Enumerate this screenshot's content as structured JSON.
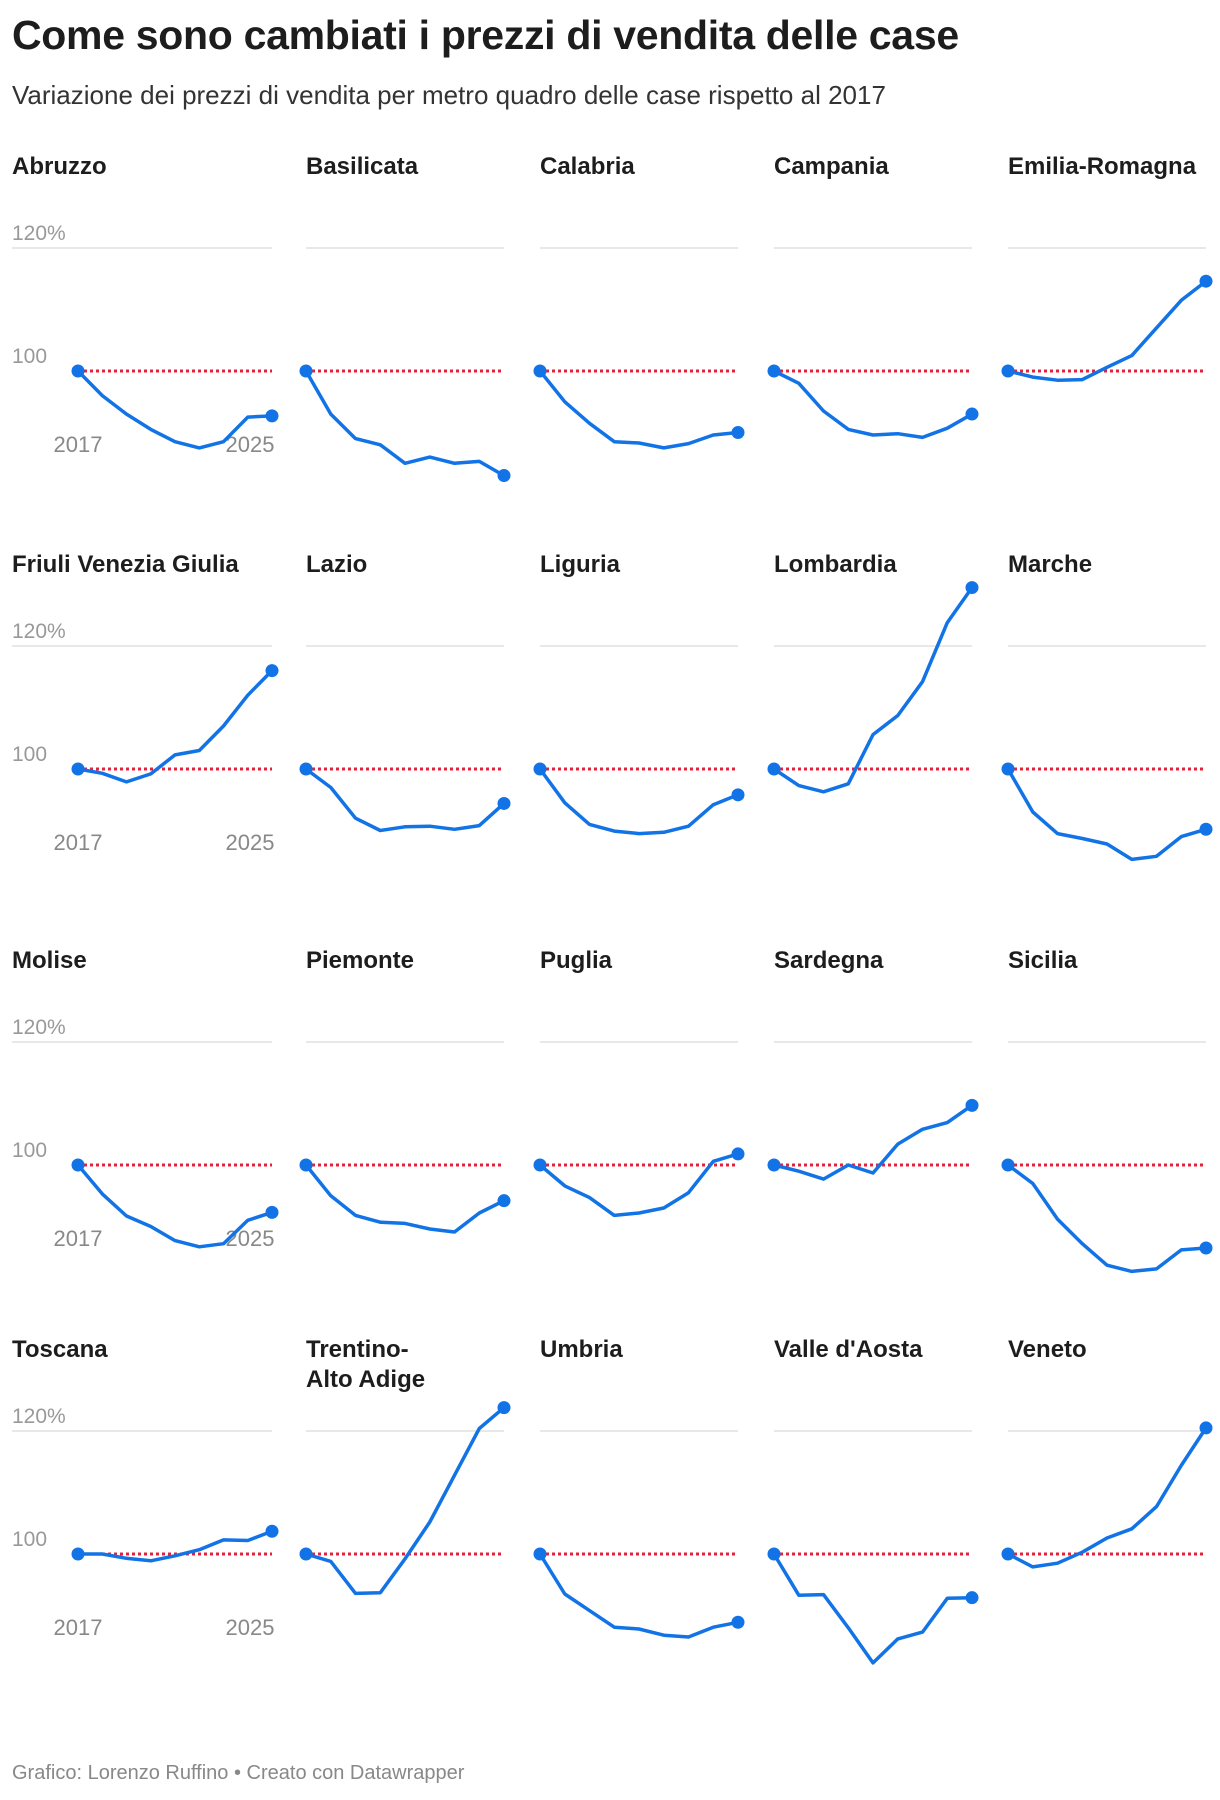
{
  "title": "Come sono cambiati i prezzi di vendita delle case",
  "subtitle": "Variazione dei prezzi di vendita per metro quadro delle case rispetto al 2017",
  "footer": {
    "credit": "Grafico: Lorenzo Ruffino",
    "separator": " • ",
    "tool": "Creato con Datawrapper"
  },
  "colors": {
    "line": "#1273e6",
    "baseline": "#e6203a",
    "grid": "#e0e0e0",
    "tick": "#999999",
    "axis_label": "#888888"
  },
  "chart_data": {
    "type": "line",
    "layout": "small-multiples",
    "columns": 5,
    "x": [
      2017,
      2018,
      2019,
      2020,
      2021,
      2022,
      2023,
      2024,
      2025
    ],
    "x_tick_labels": [
      "2017",
      "2025"
    ],
    "y_tick_labels": [
      "120%",
      "100"
    ],
    "y_ticks": [
      120,
      100
    ],
    "ylim": [
      78,
      132
    ],
    "baseline": 100,
    "grid": true,
    "legend": "none",
    "series": [
      {
        "name": "Abruzzo",
        "values": [
          100,
          96,
          93,
          90.5,
          88.5,
          87.5,
          88.5,
          92.5,
          92.7
        ]
      },
      {
        "name": "Basilicata",
        "values": [
          100,
          93,
          89,
          88,
          85,
          86,
          85,
          85.3,
          83
        ]
      },
      {
        "name": "Calabria",
        "values": [
          100,
          95,
          91.5,
          88.5,
          88.3,
          87.5,
          88.2,
          89.6,
          90
        ]
      },
      {
        "name": "Campania",
        "values": [
          100,
          98,
          93.5,
          90.5,
          89.6,
          89.8,
          89.2,
          90.7,
          93
        ]
      },
      {
        "name": "Emilia-Romagna",
        "values": [
          100,
          99,
          98.5,
          98.6,
          100.6,
          102.5,
          107,
          111.5,
          114.6
        ]
      },
      {
        "name": "Friuli Venezia Giulia",
        "values": [
          100,
          99.3,
          97.9,
          99.2,
          102.3,
          103,
          107,
          112,
          116
        ]
      },
      {
        "name": "Lazio",
        "values": [
          100,
          97,
          92,
          90,
          90.6,
          90.7,
          90.2,
          90.8,
          94.4
        ]
      },
      {
        "name": "Liguria",
        "values": [
          100,
          94.5,
          91,
          89.9,
          89.5,
          89.7,
          90.7,
          94.2,
          95.8
        ]
      },
      {
        "name": "Lombardia",
        "values": [
          100,
          97.3,
          96.3,
          97.6,
          105.6,
          108.7,
          114.2,
          123.8,
          129.5
        ]
      },
      {
        "name": "Marche",
        "values": [
          100,
          93,
          89.5,
          88.7,
          87.8,
          85.3,
          85.8,
          89,
          90.2
        ]
      },
      {
        "name": "Molise",
        "values": [
          100,
          95.3,
          91.7,
          90,
          87.7,
          86.7,
          87.2,
          91,
          92.3
        ]
      },
      {
        "name": "Piemonte",
        "values": [
          100,
          95,
          91.8,
          90.7,
          90.5,
          89.6,
          89.1,
          92.2,
          94.2
        ]
      },
      {
        "name": "Puglia",
        "values": [
          100,
          96.6,
          94.7,
          91.8,
          92.2,
          93,
          95.5,
          100.6,
          101.8
        ]
      },
      {
        "name": "Sardegna",
        "values": [
          100,
          99,
          97.7,
          100,
          98.7,
          103.4,
          105.8,
          106.9,
          109.7
        ]
      },
      {
        "name": "Sicilia",
        "values": [
          100,
          97,
          91.2,
          87.2,
          83.7,
          82.7,
          83.1,
          86.2,
          86.5
        ]
      },
      {
        "name": "Toscana",
        "values": [
          100,
          100,
          99.3,
          98.9,
          99.7,
          100.7,
          102.3,
          102.2,
          103.7
        ]
      },
      {
        "name": "Trentino-Alto Adige",
        "values": [
          100,
          98.8,
          93.6,
          93.7,
          99.2,
          105.2,
          112.8,
          120.4,
          123.8
        ]
      },
      {
        "name": "Umbria",
        "values": [
          100,
          93.5,
          90.8,
          88.1,
          87.8,
          86.8,
          86.5,
          88.1,
          88.9
        ]
      },
      {
        "name": "Valle d'Aosta",
        "values": [
          100,
          93.3,
          93.4,
          88,
          82.3,
          86.2,
          87.3,
          92.8,
          92.9
        ]
      },
      {
        "name": "Veneto",
        "values": [
          100,
          97.9,
          98.5,
          100.3,
          102.6,
          104.1,
          107.7,
          114.4,
          120.5
        ]
      }
    ]
  }
}
